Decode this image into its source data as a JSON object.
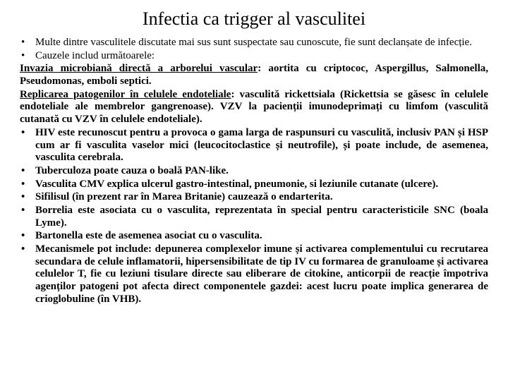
{
  "title": "Infectia ca trigger al vasculitei",
  "b1": "Multe dintre vasculitele discutate mai sus sunt suspectate sau cunoscute, fie sunt declanșate de infecție.",
  "b2": "Cauzele includ următoarele:",
  "s1a": "Invazia microbiană directă a arborelui vascular",
  "s1b": ": aortita cu criptococ, Aspergillus, Salmonella, Pseudomonas, emboli septici.",
  "s2a": "Replicarea patogenilor în celulele endoteliale",
  "s2b": ": vasculită rickettsiala (Rickettsia se găsesc în celulele endoteliale ale membrelor gangrenoase). VZV la pacienții imunodeprimați cu limfom (vasculită cutanată cu VZV în celulele endoteliale).",
  "b3": "HIV este recunoscut pentru a provoca o gama larga de raspunsuri cu vasculită, inclusiv PAN și HSP cum ar fi vasculita vaselor mici (leucocitoclastice și neutrofile), și poate include, de asemenea, vasculita cerebrala.",
  "b4": "Tuberculoza poate cauza o boală PAN-like.",
  "b5": "Vasculita CMV explica ulcerul gastro-intestinal, pneumonie, si leziunile cutanate (ulcere).",
  "b6": "Sifilisul (în prezent rar în Marea Britanie) cauzează o endarterita.",
  "b7": "Borrelia este asociata cu o vasculita, reprezentata în special pentru caracteristicile SNC (boala Lyme).",
  "b8": "Bartonella este de asemenea asociat cu o vasculita.",
  "b9": "Mecanismele pot include: depunerea complexelor imune și activarea complementului cu recrutarea secundara de celule inflamatorii, hipersensibilitate de tip IV cu formarea de granuloame și activarea celulelor T, fie cu leziuni tisulare directe sau  eliberare de citokine, anticorpii de reacție împotriva agenților patogeni pot afecta direct componentele gazdei: acest lucru poate implica generarea de crioglobuline (în VHB).",
  "bullet": "•"
}
